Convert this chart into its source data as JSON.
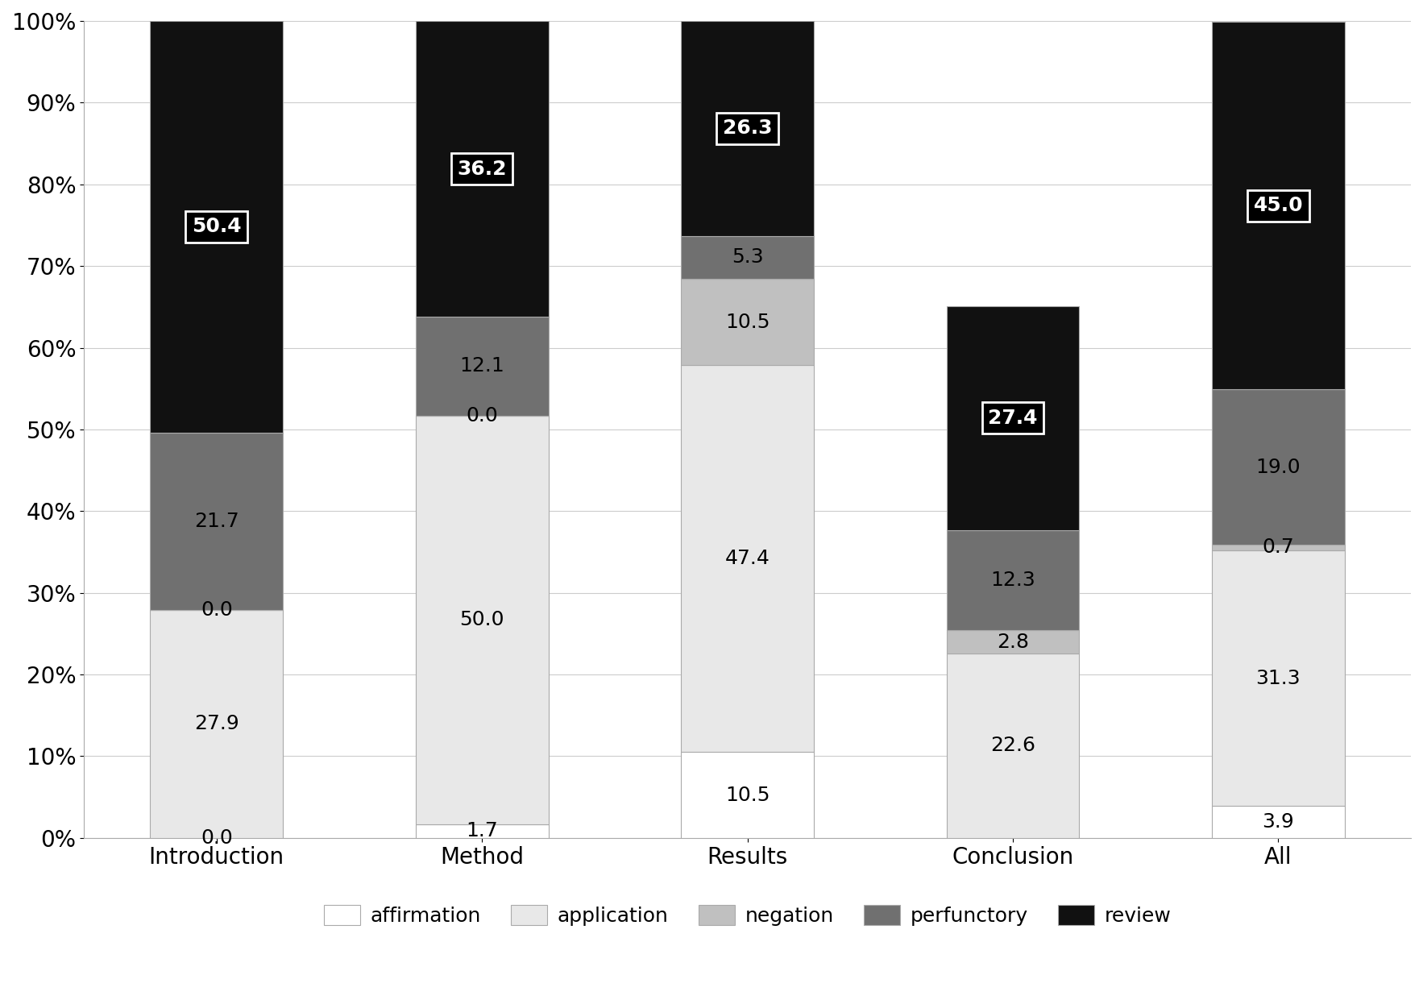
{
  "categories": [
    "Introduction",
    "Method",
    "Results",
    "Conclusion",
    "All"
  ],
  "series": {
    "affirmation": [
      0.0,
      1.7,
      10.5,
      0.0,
      3.9
    ],
    "application": [
      27.9,
      50.0,
      47.4,
      22.6,
      31.3
    ],
    "negation": [
      0.0,
      0.0,
      10.5,
      2.8,
      0.7
    ],
    "perfunctory": [
      21.7,
      12.1,
      5.3,
      12.3,
      19.0
    ],
    "review": [
      50.4,
      36.2,
      26.3,
      27.4,
      45.0
    ]
  },
  "colors": {
    "affirmation": "#ffffff",
    "application": "#e8e8e8",
    "negation": "#c0c0c0",
    "perfunctory": "#707070",
    "review": "#111111"
  },
  "bar_edge_color": "#aaaaaa",
  "bar_edge_width": 0.8,
  "label_fontsize": 18,
  "tick_fontsize": 20,
  "legend_fontsize": 18,
  "ylabel_ticks": [
    "0%",
    "10%",
    "20%",
    "30%",
    "40%",
    "50%",
    "60%",
    "70%",
    "80%",
    "90%",
    "100%"
  ],
  "ytick_values": [
    0,
    10,
    20,
    30,
    40,
    50,
    60,
    70,
    80,
    90,
    100
  ],
  "background_color": "#ffffff",
  "grid_color": "#cccccc",
  "bar_width": 0.5
}
